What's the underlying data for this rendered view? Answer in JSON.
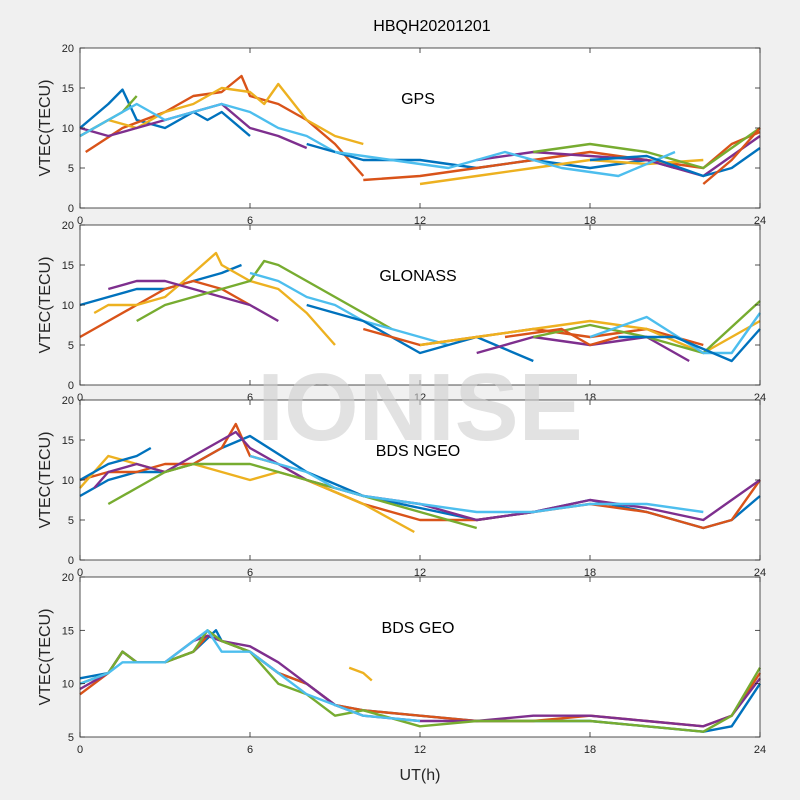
{
  "figure": {
    "title": "HBQH20201201",
    "watermark": "IONISE",
    "xlabel": "UT(h)"
  },
  "colors": [
    "#0072bd",
    "#d95319",
    "#edb120",
    "#7e2f8e",
    "#77ac30",
    "#4dbeee"
  ],
  "chart_data": [
    {
      "type": "line",
      "title": "GPS",
      "ylabel": "VTEC(TECU)",
      "xlim": [
        0,
        24
      ],
      "ylim": [
        0,
        20
      ],
      "xticks": [
        "0",
        "6",
        "12",
        "18",
        "24"
      ],
      "yticks": [
        "0",
        "5",
        "10",
        "15",
        "20"
      ],
      "series": [
        {
          "x": [
            0,
            1,
            1.5,
            2,
            3,
            4,
            4.5,
            5,
            6
          ],
          "y": [
            10,
            13,
            14.8,
            11,
            10,
            12,
            11,
            12,
            9
          ]
        },
        {
          "x": [
            0.2,
            1.5,
            3,
            4,
            5,
            5.7,
            6,
            7,
            8,
            9,
            10
          ],
          "y": [
            7,
            10,
            12,
            14,
            14.5,
            16.5,
            14,
            13,
            11,
            8,
            4
          ]
        },
        {
          "x": [
            0,
            1,
            2,
            3,
            4,
            5,
            6,
            6.5,
            7,
            8,
            9,
            10
          ],
          "y": [
            9,
            11,
            10,
            12,
            13,
            15,
            14.5,
            13,
            15.5,
            11,
            9,
            8
          ]
        },
        {
          "x": [
            0,
            1,
            2,
            3,
            4,
            5,
            6,
            7,
            8
          ],
          "y": [
            10,
            9,
            10,
            11,
            12,
            13,
            10,
            9,
            7.5
          ]
        },
        {
          "x": [
            0,
            1,
            1.5,
            2
          ],
          "y": [
            9,
            11,
            12,
            14
          ]
        },
        {
          "x": [
            0,
            1,
            2,
            3,
            4,
            5,
            6,
            7,
            8,
            9
          ],
          "y": [
            9,
            11,
            13,
            11,
            12,
            13,
            12,
            10,
            9,
            7
          ]
        },
        {
          "x": [
            8,
            10,
            12,
            14,
            16,
            18,
            20,
            21
          ],
          "y": [
            8,
            6,
            6,
            5,
            6,
            5,
            6,
            5
          ]
        },
        {
          "x": [
            10,
            12,
            14,
            16,
            18,
            20,
            22,
            23,
            24
          ],
          "y": [
            3.5,
            4,
            5,
            6,
            7,
            6,
            5,
            8,
            9.5
          ]
        },
        {
          "x": [
            12,
            14,
            16,
            18,
            20,
            22
          ],
          "y": [
            3,
            4,
            5,
            6,
            5.5,
            6
          ]
        },
        {
          "x": [
            14,
            16,
            18,
            20,
            22,
            24
          ],
          "y": [
            6,
            7,
            6.5,
            6,
            4,
            9
          ]
        },
        {
          "x": [
            16,
            18,
            20,
            22,
            24
          ],
          "y": [
            7,
            8,
            7,
            5,
            10
          ]
        },
        {
          "x": [
            9,
            11,
            13,
            15,
            17,
            19,
            21
          ],
          "y": [
            7,
            6,
            5,
            7,
            5,
            4,
            7
          ]
        },
        {
          "x": [
            18,
            20,
            22,
            23,
            24
          ],
          "y": [
            6,
            6.5,
            4,
            5,
            7.5
          ]
        },
        {
          "x": [
            22,
            23,
            24
          ],
          "y": [
            3,
            6,
            10
          ]
        }
      ]
    },
    {
      "type": "line",
      "title": "GLONASS",
      "ylabel": "VTEC(TECU)",
      "xlim": [
        0,
        24
      ],
      "ylim": [
        0,
        20
      ],
      "xticks": [
        "0",
        "6",
        "12",
        "18",
        "24"
      ],
      "yticks": [
        "0",
        "5",
        "10",
        "15",
        "20"
      ],
      "series": [
        {
          "x": [
            0,
            1,
            2,
            3,
            4,
            5,
            5.7
          ],
          "y": [
            10,
            11,
            12,
            12,
            13,
            14,
            15
          ]
        },
        {
          "x": [
            0,
            1,
            2,
            3,
            4,
            5,
            6
          ],
          "y": [
            6,
            8,
            10,
            12,
            13,
            12,
            10
          ]
        },
        {
          "x": [
            0.5,
            1,
            2,
            3,
            4,
            4.8,
            5,
            6,
            7,
            8,
            9
          ],
          "y": [
            9,
            10,
            10,
            11,
            14,
            16.5,
            15,
            13,
            12,
            9,
            5
          ]
        },
        {
          "x": [
            1,
            2,
            3,
            4,
            5,
            6,
            7
          ],
          "y": [
            12,
            13,
            13,
            12,
            11,
            10,
            8
          ]
        },
        {
          "x": [
            2,
            3,
            4,
            5,
            6,
            6.5,
            7,
            8,
            9,
            10,
            11
          ],
          "y": [
            8,
            10,
            11,
            12,
            13,
            15.5,
            15,
            13,
            11,
            9,
            7
          ]
        },
        {
          "x": [
            6,
            7,
            8,
            9,
            10,
            11,
            12,
            13
          ],
          "y": [
            14,
            13,
            11,
            10,
            8,
            7,
            6,
            5
          ]
        },
        {
          "x": [
            8,
            10,
            12,
            14,
            16
          ],
          "y": [
            10,
            8,
            4,
            6,
            3
          ]
        },
        {
          "x": [
            10,
            12,
            14,
            16,
            18,
            20,
            22
          ],
          "y": [
            7,
            5,
            6,
            7,
            6,
            7,
            5
          ]
        },
        {
          "x": [
            12,
            14,
            16,
            18,
            20,
            22,
            24
          ],
          "y": [
            5,
            6,
            7,
            8,
            7,
            4,
            8
          ]
        },
        {
          "x": [
            14,
            16,
            18,
            20,
            21.5
          ],
          "y": [
            4,
            6,
            5,
            6,
            3
          ]
        },
        {
          "x": [
            16,
            18,
            20,
            22,
            24
          ],
          "y": [
            6,
            7.5,
            6,
            4,
            10.5
          ]
        },
        {
          "x": [
            18,
            20,
            22,
            23,
            24
          ],
          "y": [
            6,
            8.5,
            4,
            4,
            9
          ]
        },
        {
          "x": [
            19,
            21,
            23,
            24
          ],
          "y": [
            6,
            6,
            3,
            7
          ]
        },
        {
          "x": [
            15,
            17,
            18,
            19
          ],
          "y": [
            6,
            7,
            5,
            6
          ]
        }
      ]
    },
    {
      "type": "line",
      "title": "BDS NGEO",
      "ylabel": "VTEC(TECU)",
      "xlim": [
        0,
        24
      ],
      "ylim": [
        0,
        20
      ],
      "xticks": [
        "0",
        "6",
        "12",
        "18",
        "24"
      ],
      "yticks": [
        "0",
        "5",
        "10",
        "15",
        "20"
      ],
      "series": [
        {
          "x": [
            0,
            1,
            2,
            3,
            4,
            5,
            6,
            8,
            10,
            12,
            14,
            16,
            18,
            20,
            22,
            23,
            24
          ],
          "y": [
            8,
            10,
            11,
            11,
            12,
            14,
            15.5,
            11,
            8,
            6.5,
            5,
            6,
            7.5,
            6,
            4,
            5,
            8
          ]
        },
        {
          "x": [
            0,
            1,
            2,
            3,
            4,
            5,
            5.5,
            6,
            7,
            8,
            10,
            12,
            14,
            16,
            18,
            20,
            22,
            23,
            24
          ],
          "y": [
            10,
            11,
            11,
            12,
            12,
            14,
            17,
            13,
            12,
            10,
            7,
            5,
            5,
            6,
            7,
            6,
            4,
            5,
            10
          ]
        },
        {
          "x": [
            0,
            1,
            2,
            3,
            4,
            5,
            6,
            7,
            8,
            10,
            11.8
          ],
          "y": [
            9,
            13,
            12,
            11,
            12,
            11,
            10,
            11,
            10,
            7,
            3.5
          ]
        },
        {
          "x": [
            0.5,
            1,
            2,
            3,
            4,
            5,
            5.5,
            6,
            7,
            8,
            10,
            12,
            14,
            16,
            18,
            20,
            22,
            24
          ],
          "y": [
            9,
            11,
            12,
            11,
            13,
            15,
            16,
            14,
            12,
            10,
            8,
            7,
            5,
            6,
            7.5,
            6.5,
            5,
            10
          ]
        },
        {
          "x": [
            1,
            2,
            3,
            4,
            5,
            6,
            7,
            8,
            10,
            12,
            14
          ],
          "y": [
            7,
            9,
            11,
            12,
            12,
            12,
            11,
            10,
            8,
            6,
            4
          ]
        },
        {
          "x": [
            6,
            7,
            8,
            9,
            10,
            12,
            14,
            16,
            18,
            20,
            22
          ],
          "y": [
            13,
            12,
            11,
            9,
            8,
            7,
            6,
            6,
            7,
            7,
            6
          ]
        },
        {
          "x": [
            0,
            1,
            2,
            2.5
          ],
          "y": [
            10,
            12,
            13,
            14
          ]
        }
      ]
    },
    {
      "type": "line",
      "title": "BDS GEO",
      "ylabel": "VTEC(TECU)",
      "xlim": [
        0,
        24
      ],
      "ylim": [
        5,
        20
      ],
      "xticks": [
        "0",
        "6",
        "12",
        "18",
        "24"
      ],
      "yticks": [
        "5",
        "10",
        "15",
        "20"
      ],
      "series": [
        {
          "x": [
            0,
            1,
            1.5,
            2,
            3,
            4,
            4.8,
            5,
            6,
            7,
            8,
            9,
            10,
            12,
            14,
            16,
            18,
            20,
            22,
            23,
            24
          ],
          "y": [
            10.5,
            11,
            13,
            12,
            12,
            13,
            15,
            14,
            13,
            11,
            10,
            8,
            7.5,
            7,
            6.5,
            6.5,
            6.5,
            6,
            5.5,
            6,
            10
          ]
        },
        {
          "x": [
            0,
            1,
            1.5,
            2,
            3,
            4,
            4.5,
            5,
            6,
            7,
            8,
            9,
            10,
            12,
            14,
            16,
            18,
            20,
            22,
            23,
            24
          ],
          "y": [
            9,
            11,
            13,
            12,
            12,
            13,
            14.5,
            14,
            13,
            11,
            10,
            8,
            7.5,
            7,
            6.5,
            6.5,
            7,
            6.5,
            6,
            7,
            11
          ]
        },
        {
          "x": [
            9.5,
            10,
            10.3
          ],
          "y": [
            11.5,
            11,
            10.3
          ]
        },
        {
          "x": [
            0,
            1,
            1.5,
            2,
            3,
            4,
            4.5,
            5,
            6,
            7,
            8,
            9,
            10,
            12,
            14,
            16,
            18,
            20,
            22,
            23,
            24
          ],
          "y": [
            9.5,
            11,
            13,
            12,
            12,
            14,
            14.5,
            14,
            13.5,
            12,
            10,
            8,
            7,
            6.5,
            6.5,
            7,
            7,
            6.5,
            6,
            7,
            10.5
          ]
        },
        {
          "x": [
            0,
            1,
            1.5,
            2,
            3,
            4,
            4.5,
            5,
            6,
            7,
            8,
            9,
            10,
            12,
            14,
            16,
            18,
            20,
            22,
            23,
            24
          ],
          "y": [
            10,
            11,
            13,
            12,
            12,
            13,
            15,
            14,
            13,
            10,
            9,
            7,
            7.5,
            6,
            6.5,
            6.5,
            6.5,
            6,
            5.5,
            7,
            11.5
          ]
        },
        {
          "x": [
            0,
            1,
            1.5,
            2,
            3,
            4,
            4.5,
            5,
            6,
            7,
            8,
            9,
            10,
            12
          ],
          "y": [
            10,
            11,
            12,
            12,
            12,
            14,
            15,
            13,
            13,
            11,
            9,
            8,
            7,
            6.5
          ]
        }
      ]
    }
  ]
}
